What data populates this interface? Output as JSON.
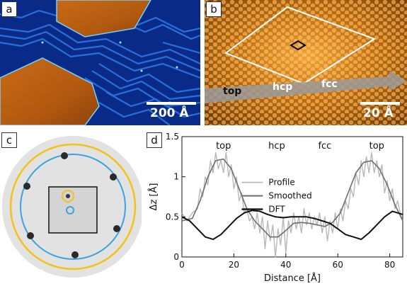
{
  "panels": {
    "a": {
      "label": "a",
      "scale": "200 Å"
    },
    "b": {
      "label": "b",
      "scale": "20 Å",
      "band": [
        "top",
        "hcp",
        "fcc"
      ]
    },
    "c": {
      "label": "c"
    },
    "d": {
      "label": "d"
    }
  },
  "colors": {
    "profile": "#b8b8b8",
    "smoothed": "#6e6e6e",
    "dft": "#111111",
    "yellow_ring": "#f2c21b",
    "blue_ring": "#3aa3e0"
  },
  "chart_data": {
    "type": "line",
    "title": "",
    "xlabel": "Distance [Å]",
    "ylabel": "Δz [Å]",
    "xlim": [
      0,
      85
    ],
    "ylim": [
      0,
      1.5
    ],
    "xticks": [
      0,
      20,
      40,
      60,
      80
    ],
    "yticks": [
      0,
      0.5,
      1,
      1.5
    ],
    "xtick_labels": [
      "0",
      "20",
      "40",
      "60",
      "80"
    ],
    "ytick_labels": [
      "0",
      "0.5",
      "1",
      "1.5"
    ],
    "annotations": [
      {
        "text": "top",
        "x": 16
      },
      {
        "text": "hcp",
        "x": 36.5
      },
      {
        "text": "fcc",
        "x": 55
      },
      {
        "text": "top",
        "x": 75
      }
    ],
    "legend": {
      "placement": "center",
      "entries": [
        "Profile",
        "Smoothed",
        "DFT"
      ]
    },
    "series": [
      {
        "name": "Profile",
        "x": [
          0,
          2,
          4,
          6,
          7,
          8,
          9,
          10,
          11,
          12,
          13,
          14,
          15,
          16,
          17,
          18,
          19,
          20,
          21,
          22,
          23,
          24,
          25,
          26,
          27,
          28,
          29,
          30,
          31,
          32,
          33,
          34,
          35,
          36,
          37,
          38,
          39,
          40,
          41,
          42,
          43,
          44,
          45,
          46,
          47,
          48,
          49,
          50,
          51,
          52,
          53,
          54,
          55,
          56,
          57,
          58,
          59,
          60,
          61,
          62,
          63,
          64,
          65,
          66,
          67,
          68,
          69,
          70,
          71,
          72,
          73,
          74,
          75,
          76,
          77,
          78,
          79,
          80,
          81,
          82,
          83,
          84,
          85
        ],
        "y": [
          0.55,
          0.45,
          0.55,
          0.6,
          0.85,
          0.75,
          1.0,
          0.9,
          1.2,
          1.05,
          1.3,
          1.1,
          1.2,
          1.05,
          1.3,
          1.0,
          1.15,
          0.85,
          1.0,
          0.7,
          0.8,
          0.55,
          0.6,
          0.45,
          0.5,
          0.35,
          0.55,
          0.3,
          0.5,
          0.1,
          0.45,
          0.2,
          0.4,
          0.0,
          0.35,
          0.15,
          0.5,
          0.05,
          0.45,
          0.3,
          0.55,
          0.35,
          0.5,
          0.3,
          0.6,
          0.4,
          0.55,
          0.35,
          0.5,
          0.4,
          0.55,
          0.3,
          0.5,
          0.2,
          0.45,
          0.3,
          0.55,
          0.35,
          0.6,
          0.45,
          0.7,
          0.6,
          0.85,
          0.75,
          1.05,
          0.9,
          1.2,
          1.0,
          1.25,
          1.05,
          1.3,
          1.05,
          1.2,
          1.0,
          1.15,
          0.8,
          0.95,
          0.7,
          0.85,
          0.6,
          0.7,
          0.55,
          0.45
        ]
      },
      {
        "name": "Smoothed",
        "x": [
          0,
          4,
          7,
          10,
          13,
          16,
          19,
          22,
          25,
          28,
          31,
          34,
          37,
          40,
          43,
          46,
          49,
          52,
          55,
          58,
          61,
          64,
          67,
          70,
          73,
          76,
          79,
          82,
          85
        ],
        "y": [
          0.45,
          0.48,
          0.7,
          1.0,
          1.2,
          1.22,
          1.1,
          0.85,
          0.6,
          0.45,
          0.35,
          0.25,
          0.25,
          0.33,
          0.42,
          0.43,
          0.42,
          0.4,
          0.38,
          0.43,
          0.55,
          0.8,
          1.05,
          1.18,
          1.2,
          1.1,
          0.9,
          0.65,
          0.45
        ]
      },
      {
        "name": "DFT",
        "x": [
          0,
          3,
          6,
          9,
          12,
          15,
          18,
          21,
          24,
          27,
          30,
          33,
          36,
          39,
          42,
          45,
          48,
          51,
          54,
          57,
          60,
          63,
          66,
          69,
          72,
          75,
          78,
          81,
          85
        ],
        "y": [
          0.5,
          0.45,
          0.35,
          0.25,
          0.22,
          0.28,
          0.38,
          0.48,
          0.55,
          0.58,
          0.57,
          0.53,
          0.5,
          0.49,
          0.5,
          0.5,
          0.5,
          0.48,
          0.45,
          0.42,
          0.35,
          0.28,
          0.25,
          0.22,
          0.3,
          0.4,
          0.5,
          0.57,
          0.53
        ]
      }
    ]
  }
}
